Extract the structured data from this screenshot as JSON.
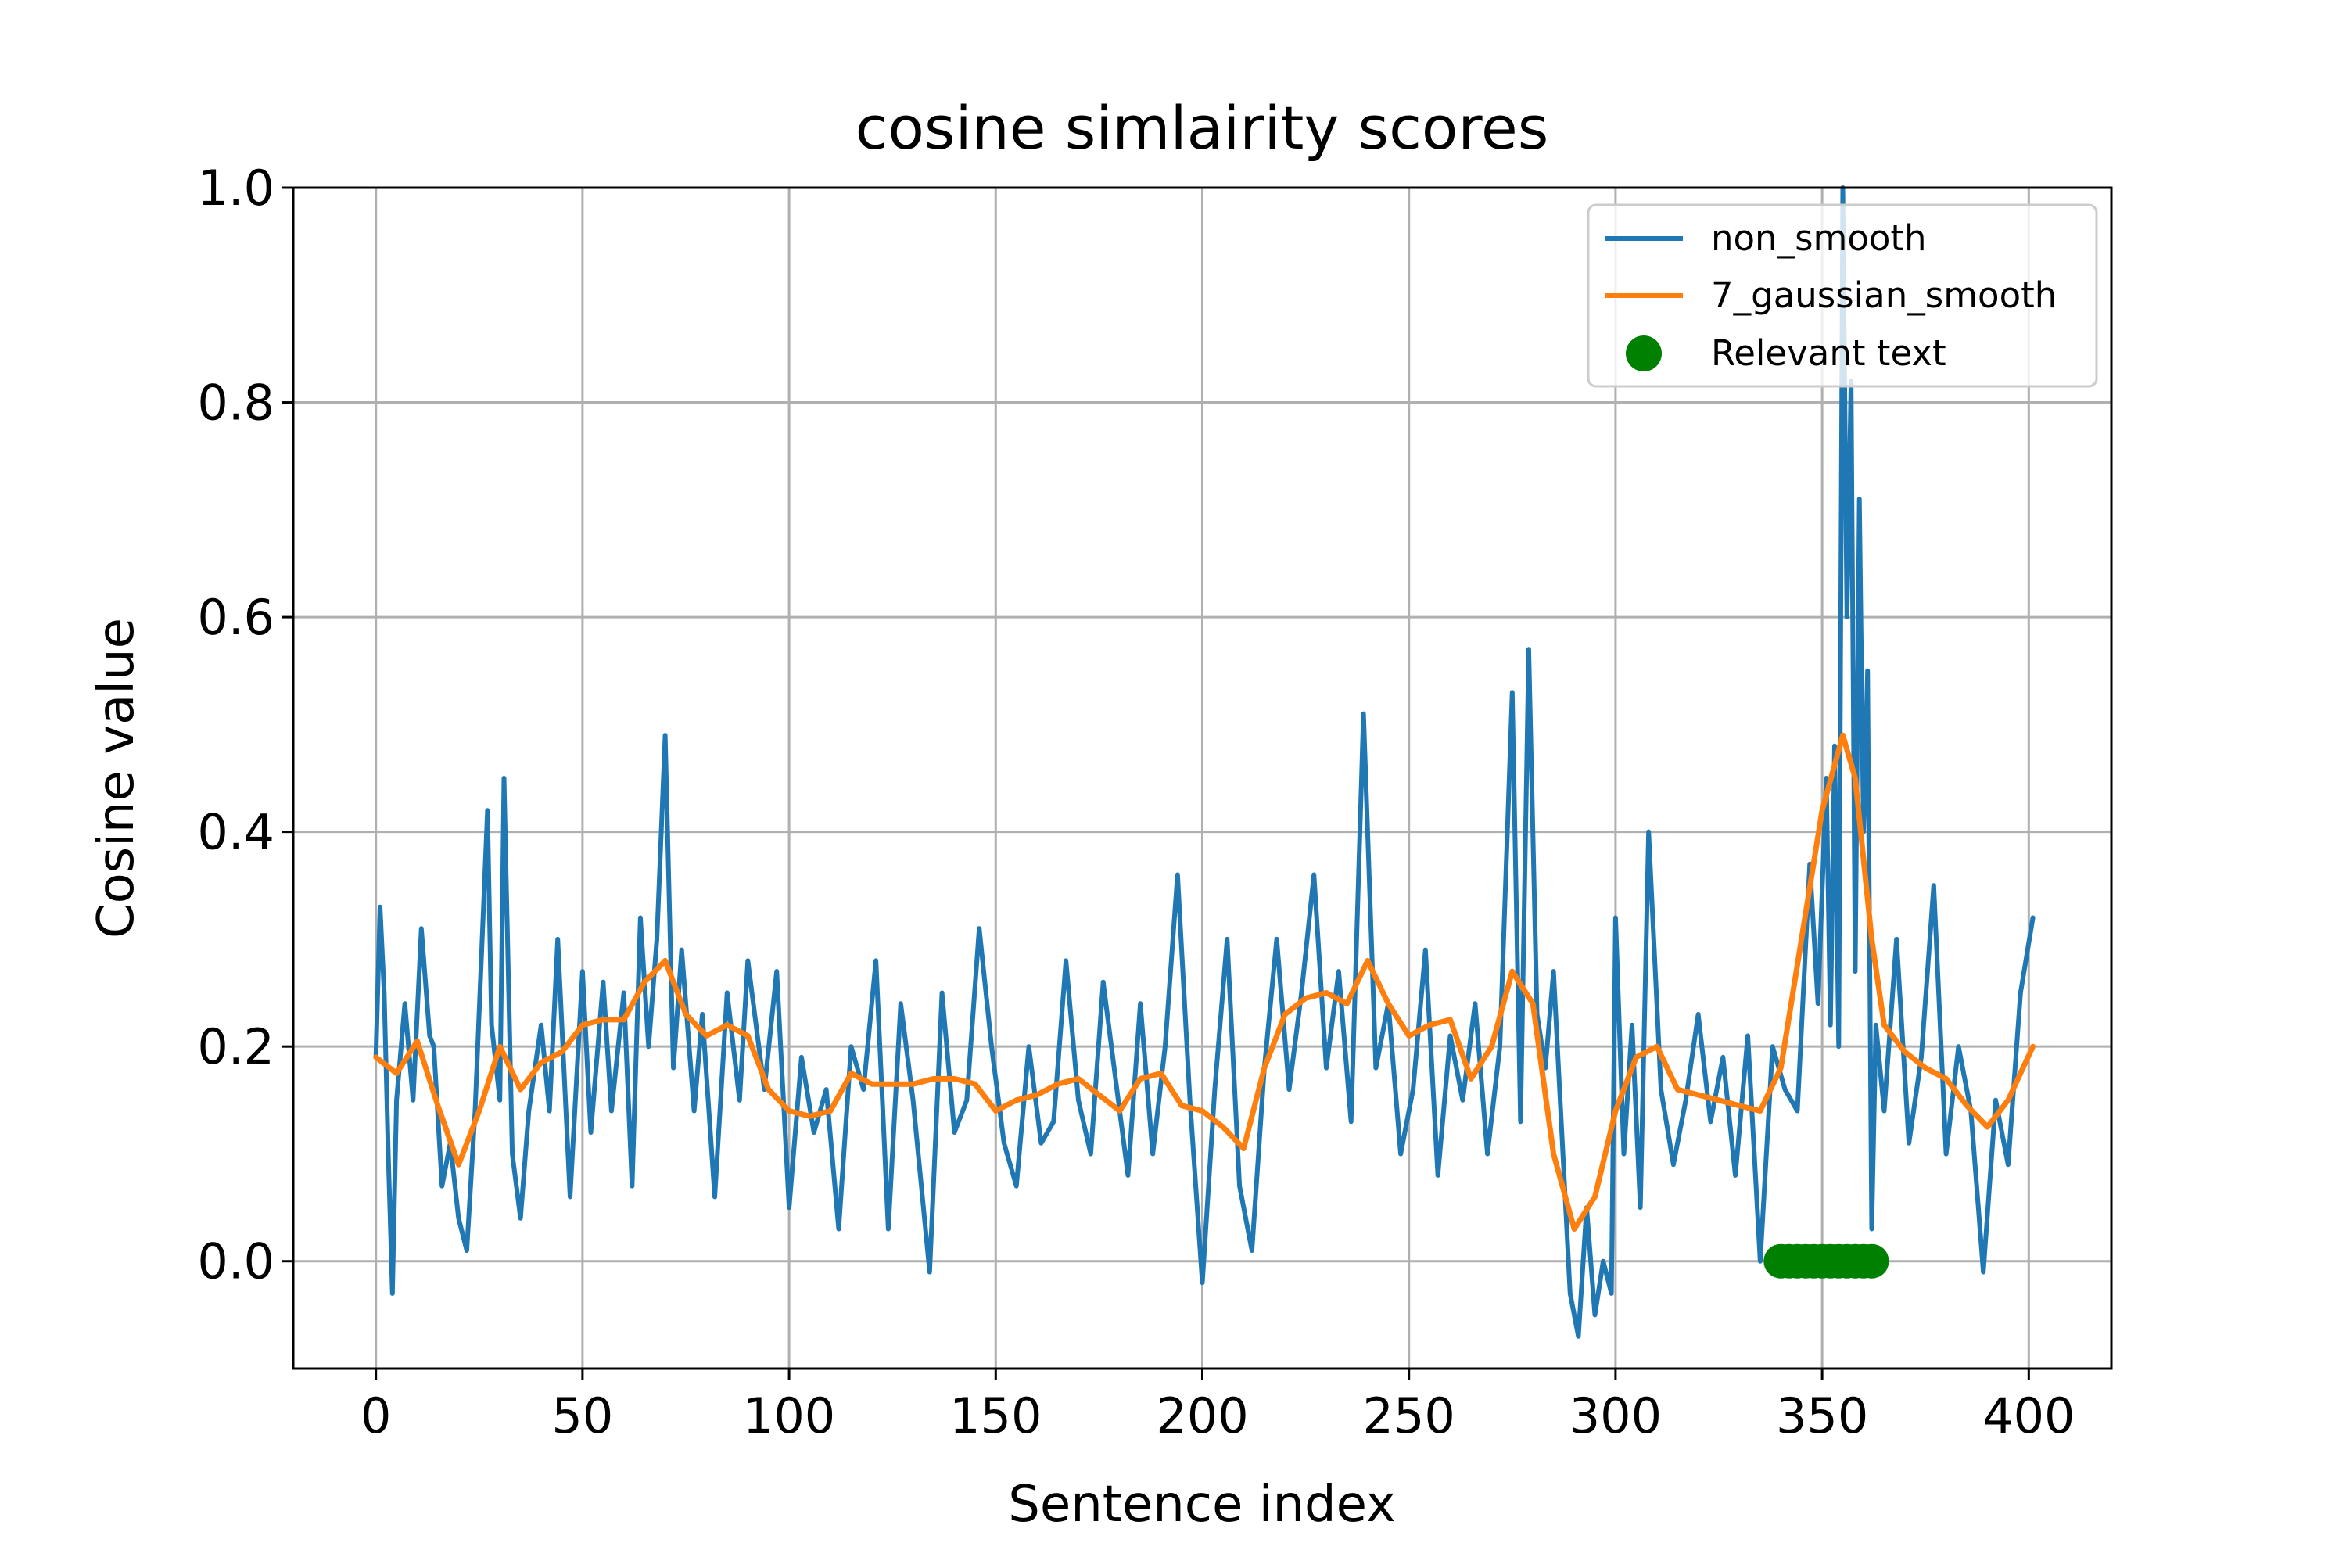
{
  "chart_data": {
    "type": "line",
    "title": "cosine simlairity scores",
    "xlabel": "Sentence index",
    "ylabel": "Cosine value",
    "xlim": [
      -20,
      420
    ],
    "ylim": [
      -0.1,
      1.0
    ],
    "xticks": [
      0,
      50,
      100,
      150,
      200,
      250,
      300,
      350,
      400
    ],
    "xtick_labels": [
      "0",
      "50",
      "100",
      "150",
      "200",
      "250",
      "300",
      "350",
      "400"
    ],
    "yticks": [
      0.0,
      0.2,
      0.4,
      0.6,
      0.8,
      1.0
    ],
    "ytick_labels": [
      "0.0",
      "0.2",
      "0.4",
      "0.6",
      "0.8",
      "1.0"
    ],
    "grid": true,
    "legend_position": "upper right",
    "series": [
      {
        "name": "non_smooth",
        "kind": "line",
        "color": "#1f77b4",
        "x": [
          0,
          1,
          2,
          3,
          4,
          5,
          7,
          9,
          11,
          13,
          14,
          16,
          18,
          20,
          22,
          24,
          27,
          28,
          30,
          31,
          33,
          35,
          37,
          40,
          42,
          44,
          47,
          50,
          52,
          55,
          57,
          60,
          62,
          64,
          66,
          68,
          70,
          72,
          74,
          77,
          79,
          82,
          85,
          88,
          90,
          94,
          97,
          100,
          103,
          106,
          109,
          112,
          115,
          118,
          121,
          124,
          127,
          130,
          134,
          137,
          140,
          143,
          146,
          149,
          152,
          155,
          158,
          161,
          164,
          167,
          170,
          173,
          176,
          179,
          182,
          185,
          188,
          191,
          194,
          197,
          200,
          203,
          206,
          209,
          212,
          215,
          218,
          221,
          224,
          227,
          230,
          233,
          236,
          239,
          240,
          242,
          245,
          248,
          251,
          254,
          257,
          260,
          263,
          266,
          269,
          272,
          275,
          277,
          279,
          281,
          283,
          285,
          287,
          289,
          291,
          293,
          295,
          297,
          299,
          300,
          302,
          304,
          306,
          308,
          311,
          314,
          317,
          320,
          323,
          326,
          329,
          332,
          335,
          338,
          341,
          344,
          347,
          349,
          351,
          352,
          353,
          354,
          355,
          356,
          357,
          358,
          359,
          360,
          361,
          362,
          363,
          365,
          368,
          371,
          374,
          377,
          380,
          383,
          386,
          389,
          392,
          395,
          398,
          401
        ],
        "y": [
          0.19,
          0.33,
          0.25,
          0.1,
          -0.03,
          0.15,
          0.24,
          0.15,
          0.31,
          0.21,
          0.2,
          0.07,
          0.11,
          0.04,
          0.01,
          0.14,
          0.42,
          0.22,
          0.15,
          0.45,
          0.1,
          0.04,
          0.14,
          0.22,
          0.14,
          0.3,
          0.06,
          0.27,
          0.12,
          0.26,
          0.14,
          0.25,
          0.07,
          0.32,
          0.2,
          0.3,
          0.49,
          0.18,
          0.29,
          0.14,
          0.23,
          0.06,
          0.25,
          0.15,
          0.28,
          0.16,
          0.27,
          0.05,
          0.19,
          0.12,
          0.16,
          0.03,
          0.2,
          0.16,
          0.28,
          0.03,
          0.24,
          0.15,
          -0.01,
          0.25,
          0.12,
          0.15,
          0.31,
          0.2,
          0.11,
          0.07,
          0.2,
          0.11,
          0.13,
          0.28,
          0.15,
          0.1,
          0.26,
          0.17,
          0.08,
          0.24,
          0.1,
          0.2,
          0.36,
          0.15,
          -0.02,
          0.16,
          0.3,
          0.07,
          0.01,
          0.18,
          0.3,
          0.16,
          0.25,
          0.36,
          0.18,
          0.27,
          0.13,
          0.51,
          0.4,
          0.18,
          0.24,
          0.1,
          0.16,
          0.29,
          0.08,
          0.21,
          0.15,
          0.24,
          0.1,
          0.2,
          0.53,
          0.13,
          0.57,
          0.23,
          0.18,
          0.27,
          0.12,
          -0.03,
          -0.07,
          0.05,
          -0.05,
          0.0,
          -0.03,
          0.32,
          0.1,
          0.22,
          0.05,
          0.4,
          0.16,
          0.09,
          0.15,
          0.23,
          0.13,
          0.19,
          0.08,
          0.21,
          0.0,
          0.2,
          0.16,
          0.14,
          0.37,
          0.24,
          0.45,
          0.22,
          0.48,
          0.2,
          1.0,
          0.6,
          0.82,
          0.27,
          0.71,
          0.4,
          0.55,
          0.03,
          0.22,
          0.14,
          0.3,
          0.11,
          0.19,
          0.35,
          0.1,
          0.2,
          0.14,
          -0.01,
          0.15,
          0.09,
          0.25,
          0.32
        ]
      },
      {
        "name": "7_gaussian_smooth",
        "kind": "line",
        "color": "#ff7f0e",
        "x": [
          0,
          5,
          10,
          15,
          20,
          25,
          30,
          35,
          40,
          45,
          50,
          55,
          60,
          65,
          70,
          75,
          80,
          85,
          90,
          95,
          100,
          105,
          110,
          115,
          120,
          125,
          130,
          135,
          140,
          145,
          150,
          155,
          160,
          165,
          170,
          175,
          180,
          185,
          190,
          195,
          200,
          205,
          210,
          215,
          220,
          225,
          230,
          235,
          240,
          245,
          250,
          255,
          260,
          265,
          270,
          275,
          280,
          285,
          290,
          295,
          300,
          305,
          310,
          315,
          320,
          325,
          330,
          335,
          340,
          345,
          350,
          355,
          358,
          362,
          365,
          370,
          375,
          380,
          385,
          390,
          395,
          401
        ],
        "y": [
          0.19,
          0.175,
          0.205,
          0.145,
          0.09,
          0.14,
          0.2,
          0.16,
          0.185,
          0.195,
          0.22,
          0.225,
          0.225,
          0.26,
          0.28,
          0.23,
          0.21,
          0.22,
          0.21,
          0.16,
          0.14,
          0.135,
          0.14,
          0.175,
          0.165,
          0.165,
          0.165,
          0.17,
          0.17,
          0.165,
          0.14,
          0.15,
          0.155,
          0.165,
          0.17,
          0.155,
          0.14,
          0.17,
          0.175,
          0.145,
          0.14,
          0.125,
          0.105,
          0.18,
          0.23,
          0.245,
          0.25,
          0.24,
          0.28,
          0.24,
          0.21,
          0.22,
          0.225,
          0.17,
          0.2,
          0.27,
          0.24,
          0.1,
          0.03,
          0.06,
          0.14,
          0.19,
          0.2,
          0.16,
          0.155,
          0.15,
          0.145,
          0.14,
          0.18,
          0.3,
          0.42,
          0.49,
          0.45,
          0.3,
          0.22,
          0.195,
          0.18,
          0.17,
          0.145,
          0.125,
          0.15,
          0.2
        ]
      },
      {
        "name": "Relevant text",
        "kind": "scatter",
        "color": "#008000",
        "x": [
          340,
          342,
          344,
          346,
          348,
          350,
          352,
          354,
          356,
          358,
          360,
          362
        ],
        "y": [
          0,
          0,
          0,
          0,
          0,
          0,
          0,
          0,
          0,
          0,
          0,
          0
        ]
      }
    ]
  }
}
